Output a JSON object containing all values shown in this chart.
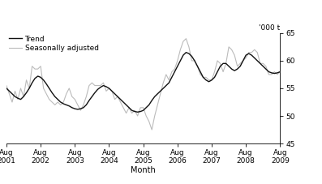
{
  "title": "",
  "ylabel_right": "'000 t",
  "xlabel": "Month",
  "ylim": [
    45,
    65
  ],
  "yticks": [
    45,
    50,
    55,
    60,
    65
  ],
  "x_labels": [
    "Aug\n2001",
    "Aug\n2002",
    "Aug\n2003",
    "Aug\n2004",
    "Aug\n2005",
    "Aug\n2006",
    "Aug\n2007",
    "Aug\n2008",
    "Aug\n2009"
  ],
  "x_positions": [
    0,
    12,
    24,
    36,
    48,
    60,
    72,
    84,
    96
  ],
  "trend_color": "#111111",
  "seasonal_color": "#bbbbbb",
  "trend_label": "Trend",
  "seasonal_label": "Seasonally adjusted",
  "trend_linewidth": 1.0,
  "seasonal_linewidth": 0.8,
  "background_color": "#ffffff",
  "trend_x": [
    0,
    1,
    2,
    3,
    4,
    5,
    6,
    7,
    8,
    9,
    10,
    11,
    12,
    13,
    14,
    15,
    16,
    17,
    18,
    19,
    20,
    21,
    22,
    23,
    24,
    25,
    26,
    27,
    28,
    29,
    30,
    31,
    32,
    33,
    34,
    35,
    36,
    37,
    38,
    39,
    40,
    41,
    42,
    43,
    44,
    45,
    46,
    47,
    48,
    49,
    50,
    51,
    52,
    53,
    54,
    55,
    56,
    57,
    58,
    59,
    60,
    61,
    62,
    63,
    64,
    65,
    66,
    67,
    68,
    69,
    70,
    71,
    72,
    73,
    74,
    75,
    76,
    77,
    78,
    79,
    80,
    81,
    82,
    83,
    84,
    85,
    86,
    87,
    88,
    89,
    90,
    91,
    92,
    93,
    94,
    95,
    96
  ],
  "trend_y": [
    55.0,
    54.5,
    54.0,
    53.5,
    53.2,
    53.0,
    53.5,
    54.2,
    55.0,
    56.0,
    56.8,
    57.2,
    57.0,
    56.5,
    55.8,
    55.0,
    54.2,
    53.5,
    53.0,
    52.5,
    52.2,
    52.0,
    51.8,
    51.5,
    51.3,
    51.2,
    51.3,
    51.5,
    52.0,
    52.8,
    53.5,
    54.2,
    54.8,
    55.2,
    55.5,
    55.3,
    55.0,
    54.5,
    54.0,
    53.5,
    53.0,
    52.5,
    52.0,
    51.5,
    51.0,
    50.8,
    50.7,
    50.8,
    51.0,
    51.5,
    52.0,
    52.8,
    53.5,
    54.0,
    54.5,
    55.0,
    55.5,
    56.0,
    57.0,
    58.0,
    59.0,
    60.0,
    61.0,
    61.5,
    61.3,
    60.8,
    60.0,
    59.0,
    58.0,
    57.0,
    56.5,
    56.2,
    56.5,
    57.0,
    58.0,
    59.0,
    59.5,
    59.5,
    59.0,
    58.5,
    58.2,
    58.5,
    59.0,
    60.0,
    61.0,
    61.3,
    61.0,
    60.5,
    60.0,
    59.5,
    59.0,
    58.5,
    58.0,
    57.8,
    57.7,
    57.8,
    58.0
  ],
  "seasonal_x": [
    0,
    1,
    2,
    3,
    4,
    5,
    6,
    7,
    8,
    9,
    10,
    11,
    12,
    13,
    14,
    15,
    16,
    17,
    18,
    19,
    20,
    21,
    22,
    23,
    24,
    25,
    26,
    27,
    28,
    29,
    30,
    31,
    32,
    33,
    34,
    35,
    36,
    37,
    38,
    39,
    40,
    41,
    42,
    43,
    44,
    45,
    46,
    47,
    48,
    49,
    50,
    51,
    52,
    53,
    54,
    55,
    56,
    57,
    58,
    59,
    60,
    61,
    62,
    63,
    64,
    65,
    66,
    67,
    68,
    69,
    70,
    71,
    72,
    73,
    74,
    75,
    76,
    77,
    78,
    79,
    80,
    81,
    82,
    83,
    84,
    85,
    86,
    87,
    88,
    89,
    90,
    91,
    92,
    93,
    94,
    95,
    96
  ],
  "seasonal_y": [
    55.5,
    54.0,
    52.5,
    54.5,
    53.0,
    55.0,
    53.5,
    56.5,
    55.0,
    59.0,
    58.5,
    58.5,
    59.0,
    55.0,
    54.0,
    53.0,
    52.5,
    52.0,
    52.5,
    52.0,
    52.5,
    54.0,
    55.0,
    53.5,
    53.0,
    52.0,
    51.0,
    52.0,
    53.5,
    55.5,
    56.0,
    55.5,
    55.5,
    55.5,
    56.0,
    54.5,
    55.0,
    54.5,
    53.0,
    53.5,
    52.5,
    51.5,
    50.5,
    51.5,
    50.5,
    51.0,
    50.0,
    51.5,
    51.5,
    50.0,
    49.0,
    47.5,
    50.0,
    52.0,
    54.0,
    56.0,
    57.5,
    56.5,
    58.0,
    58.5,
    60.0,
    62.0,
    63.5,
    64.0,
    62.5,
    60.0,
    60.0,
    59.0,
    57.5,
    57.0,
    57.0,
    56.5,
    56.5,
    58.0,
    60.0,
    59.5,
    58.0,
    59.5,
    62.5,
    62.0,
    61.0,
    59.0,
    59.5,
    60.0,
    60.5,
    61.5,
    61.5,
    62.0,
    61.5,
    59.5,
    59.5,
    59.0,
    57.5,
    57.5,
    58.0,
    57.5,
    58.0
  ]
}
